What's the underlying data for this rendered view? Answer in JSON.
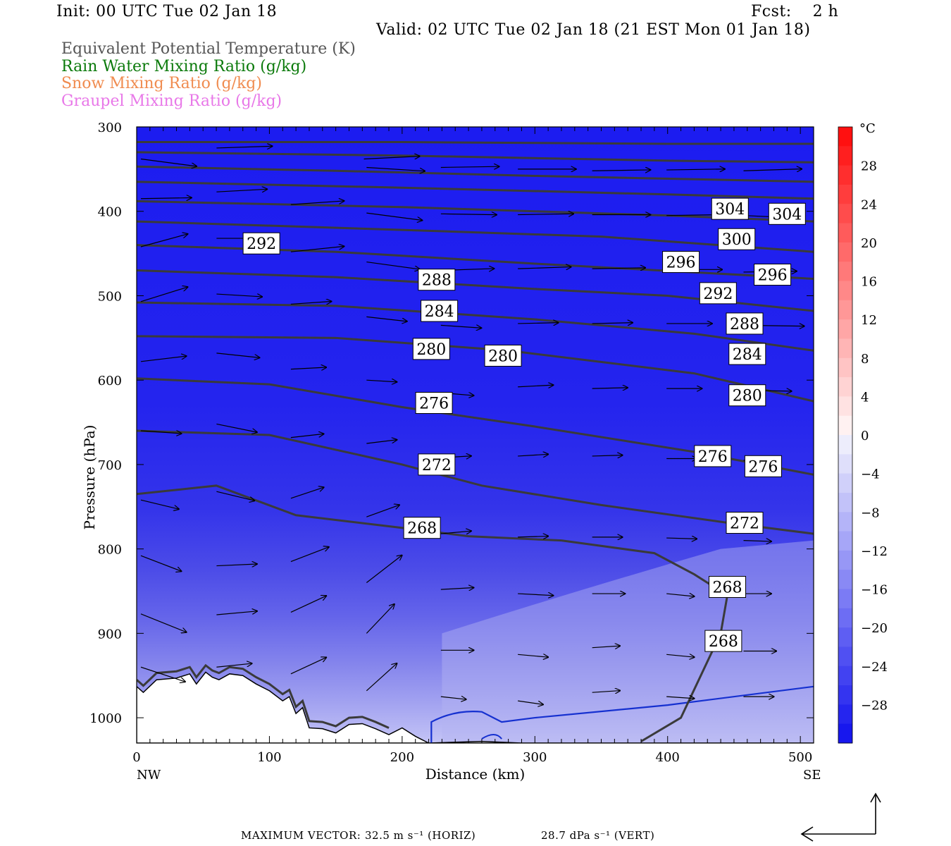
{
  "header": {
    "init": "Init: 00 UTC Tue 02 Jan 18",
    "fcst": "Fcst:    2 h",
    "valid": "Valid: 02 UTC Tue 02 Jan 18 (21 EST Mon 01 Jan 18)"
  },
  "legend": [
    {
      "label": "Equivalent Potential Temperature (K)",
      "color": "#555555"
    },
    {
      "label": "Rain Water Mixing Ratio (g/kg)",
      "color": "#0b7a0b"
    },
    {
      "label": "Snow Mixing Ratio (g/kg)",
      "color": "#f08c50"
    },
    {
      "label": "Graupel Mixing Ratio (g/kg)",
      "color": "#e878e8"
    }
  ],
  "footer": {
    "prefix": "MAXIMUM VECTOR:",
    "horiz": "32.5 m s⁻¹ (HORIZ)",
    "vert": "28.7 dPa s⁻¹ (VERT)"
  },
  "colors": {
    "contour": "#3a3a3a",
    "blue_isotherm": "#1530d0",
    "terrain_fill": "#ffffff"
  },
  "chart_data": {
    "type": "heatmap",
    "xlabel": "Distance (km)",
    "ylabel": "Pressure (hPa)",
    "xlim": [
      0,
      510
    ],
    "ylim": [
      1030,
      300
    ],
    "x_ticks": [
      0,
      100,
      200,
      300,
      400,
      500
    ],
    "y_ticks": [
      300,
      400,
      500,
      600,
      700,
      800,
      900,
      1000
    ],
    "x_endpoints": {
      "left": "NW",
      "right": "SE"
    },
    "colorbar": {
      "unit": "°C",
      "ticks": [
        28,
        24,
        20,
        16,
        12,
        8,
        4,
        0,
        -4,
        -8,
        -12,
        -16,
        -20,
        -24,
        -28
      ],
      "range": [
        -32,
        32
      ]
    },
    "theta_e_labels": [
      {
        "value": "304",
        "x": 447,
        "p": 397
      },
      {
        "value": "304",
        "x": 490,
        "p": 403
      },
      {
        "value": "300",
        "x": 452,
        "p": 433
      },
      {
        "value": "296",
        "x": 410,
        "p": 460
      },
      {
        "value": "296",
        "x": 479,
        "p": 475
      },
      {
        "value": "292",
        "x": 94,
        "p": 438
      },
      {
        "value": "292",
        "x": 438,
        "p": 497
      },
      {
        "value": "288",
        "x": 226,
        "p": 481
      },
      {
        "value": "288",
        "x": 458,
        "p": 533
      },
      {
        "value": "284",
        "x": 228,
        "p": 518
      },
      {
        "value": "284",
        "x": 460,
        "p": 569
      },
      {
        "value": "280",
        "x": 222,
        "p": 563
      },
      {
        "value": "280",
        "x": 276,
        "p": 571
      },
      {
        "value": "280",
        "x": 460,
        "p": 618
      },
      {
        "value": "276",
        "x": 224,
        "p": 627
      },
      {
        "value": "276",
        "x": 434,
        "p": 690
      },
      {
        "value": "276",
        "x": 472,
        "p": 702
      },
      {
        "value": "272",
        "x": 226,
        "p": 700
      },
      {
        "value": "272",
        "x": 458,
        "p": 769
      },
      {
        "value": "268",
        "x": 215,
        "p": 775
      },
      {
        "value": "268",
        "x": 445,
        "p": 845
      },
      {
        "value": "268",
        "x": 442,
        "p": 909
      }
    ],
    "winds": [
      {
        "x": 57,
        "p": 325,
        "u": 44,
        "w": 2
      },
      {
        "x": 168,
        "p": 338,
        "u": 44,
        "w": 3
      },
      {
        "x": 0,
        "p": 338,
        "u": 44,
        "w": -8
      },
      {
        "x": 170,
        "p": 348,
        "u": 46,
        "w": -4
      },
      {
        "x": 226,
        "p": 348,
        "u": 46,
        "w": 1
      },
      {
        "x": 284,
        "p": 350,
        "u": 46,
        "w": 0
      },
      {
        "x": 340,
        "p": 352,
        "u": 46,
        "w": 1
      },
      {
        "x": 396,
        "p": 351,
        "u": 46,
        "w": 1
      },
      {
        "x": 454,
        "p": 352,
        "u": 46,
        "w": 2
      },
      {
        "x": 57,
        "p": 377,
        "u": 40,
        "w": 3
      },
      {
        "x": 0,
        "p": 385,
        "u": 40,
        "w": 1
      },
      {
        "x": 113,
        "p": 392,
        "u": 42,
        "w": 4
      },
      {
        "x": 170,
        "p": 402,
        "u": 44,
        "w": -8
      },
      {
        "x": 226,
        "p": 403,
        "u": 44,
        "w": -1
      },
      {
        "x": 284,
        "p": 404,
        "u": 44,
        "w": 1
      },
      {
        "x": 340,
        "p": 404,
        "u": 46,
        "w": 0
      },
      {
        "x": 396,
        "p": 405,
        "u": 46,
        "w": 1
      },
      {
        "x": 454,
        "p": 405,
        "u": 48,
        "w": -3
      },
      {
        "x": 0,
        "p": 442,
        "u": 37,
        "w": 14
      },
      {
        "x": 113,
        "p": 448,
        "u": 42,
        "w": 6
      },
      {
        "x": 57,
        "p": 432,
        "u": 42,
        "w": 0
      },
      {
        "x": 170,
        "p": 460,
        "u": 42,
        "w": -8
      },
      {
        "x": 226,
        "p": 470,
        "u": 42,
        "w": 2
      },
      {
        "x": 284,
        "p": 468,
        "u": 42,
        "w": 2
      },
      {
        "x": 340,
        "p": 468,
        "u": 42,
        "w": 1
      },
      {
        "x": 396,
        "p": 469,
        "u": 44,
        "w": 0
      },
      {
        "x": 454,
        "p": 472,
        "u": 42,
        "w": 1
      },
      {
        "x": 0,
        "p": 507,
        "u": 37,
        "w": 16
      },
      {
        "x": 57,
        "p": 498,
        "u": 36,
        "w": -3
      },
      {
        "x": 113,
        "p": 510,
        "u": 32,
        "w": 3
      },
      {
        "x": 170,
        "p": 525,
        "u": 32,
        "w": -5
      },
      {
        "x": 226,
        "p": 535,
        "u": 32,
        "w": -3
      },
      {
        "x": 284,
        "p": 533,
        "u": 32,
        "w": 1
      },
      {
        "x": 340,
        "p": 533,
        "u": 32,
        "w": 1
      },
      {
        "x": 396,
        "p": 533,
        "u": 36,
        "w": 0
      },
      {
        "x": 454,
        "p": 535,
        "u": 48,
        "w": -1
      },
      {
        "x": 0,
        "p": 578,
        "u": 36,
        "w": 6
      },
      {
        "x": 57,
        "p": 568,
        "u": 34,
        "w": -5
      },
      {
        "x": 113,
        "p": 587,
        "u": 28,
        "w": 2
      },
      {
        "x": 170,
        "p": 600,
        "u": 24,
        "w": -2
      },
      {
        "x": 226,
        "p": 615,
        "u": 26,
        "w": -3
      },
      {
        "x": 284,
        "p": 608,
        "u": 28,
        "w": 2
      },
      {
        "x": 340,
        "p": 610,
        "u": 28,
        "w": 1
      },
      {
        "x": 396,
        "p": 610,
        "u": 28,
        "w": 0
      },
      {
        "x": 454,
        "p": 612,
        "u": 38,
        "w": -1
      },
      {
        "x": 0,
        "p": 660,
        "u": 32,
        "w": -3
      },
      {
        "x": 57,
        "p": 652,
        "u": 32,
        "w": -9
      },
      {
        "x": 113,
        "p": 668,
        "u": 26,
        "w": 4
      },
      {
        "x": 170,
        "p": 675,
        "u": 24,
        "w": 4
      },
      {
        "x": 226,
        "p": 692,
        "u": 24,
        "w": 2
      },
      {
        "x": 284,
        "p": 690,
        "u": 24,
        "w": 2
      },
      {
        "x": 340,
        "p": 690,
        "u": 24,
        "w": 1
      },
      {
        "x": 396,
        "p": 693,
        "u": 24,
        "w": 0
      },
      {
        "x": 454,
        "p": 695,
        "u": 26,
        "w": -2
      },
      {
        "x": 0,
        "p": 742,
        "u": 30,
        "w": -10
      },
      {
        "x": 57,
        "p": 732,
        "u": 30,
        "w": -10
      },
      {
        "x": 113,
        "p": 740,
        "u": 26,
        "w": 12
      },
      {
        "x": 170,
        "p": 762,
        "u": 26,
        "w": 13
      },
      {
        "x": 226,
        "p": 782,
        "u": 24,
        "w": 3
      },
      {
        "x": 284,
        "p": 786,
        "u": 24,
        "w": 1
      },
      {
        "x": 340,
        "p": 786,
        "u": 24,
        "w": 0
      },
      {
        "x": 396,
        "p": 787,
        "u": 24,
        "w": -1
      },
      {
        "x": 454,
        "p": 790,
        "u": 22,
        "w": -1
      },
      {
        "x": 0,
        "p": 808,
        "u": 32,
        "w": -17
      },
      {
        "x": 57,
        "p": 820,
        "u": 32,
        "w": 2
      },
      {
        "x": 113,
        "p": 815,
        "u": 30,
        "w": 16
      },
      {
        "x": 170,
        "p": 840,
        "u": 28,
        "w": 30
      },
      {
        "x": 226,
        "p": 848,
        "u": 26,
        "w": 2
      },
      {
        "x": 284,
        "p": 853,
        "u": 28,
        "w": -2
      },
      {
        "x": 340,
        "p": 853,
        "u": 26,
        "w": 0
      },
      {
        "x": 396,
        "p": 853,
        "u": 22,
        "w": -3
      },
      {
        "x": 454,
        "p": 853,
        "u": 22,
        "w": 0
      },
      {
        "x": 0,
        "p": 877,
        "u": 36,
        "w": -20
      },
      {
        "x": 57,
        "p": 878,
        "u": 32,
        "w": 4
      },
      {
        "x": 113,
        "p": 875,
        "u": 28,
        "w": 18
      },
      {
        "x": 170,
        "p": 900,
        "u": 22,
        "w": 32
      },
      {
        "x": 226,
        "p": 920,
        "u": 26,
        "w": 0
      },
      {
        "x": 284,
        "p": 925,
        "u": 24,
        "w": -3
      },
      {
        "x": 340,
        "p": 917,
        "u": 22,
        "w": 2
      },
      {
        "x": 396,
        "p": 925,
        "u": 22,
        "w": -3
      },
      {
        "x": 454,
        "p": 921,
        "u": 26,
        "w": 0
      },
      {
        "x": 0,
        "p": 940,
        "u": 35,
        "w": -16
      },
      {
        "x": 57,
        "p": 940,
        "u": 28,
        "w": 4
      },
      {
        "x": 113,
        "p": 948,
        "u": 28,
        "w": 18
      },
      {
        "x": 170,
        "p": 968,
        "u": 24,
        "w": 30
      },
      {
        "x": 226,
        "p": 975,
        "u": 20,
        "w": -3
      },
      {
        "x": 284,
        "p": 980,
        "u": 20,
        "w": -4
      },
      {
        "x": 340,
        "p": 970,
        "u": 22,
        "w": 2
      },
      {
        "x": 396,
        "p": 975,
        "u": 22,
        "w": -2
      },
      {
        "x": 454,
        "p": 975,
        "u": 24,
        "w": 0
      }
    ]
  }
}
